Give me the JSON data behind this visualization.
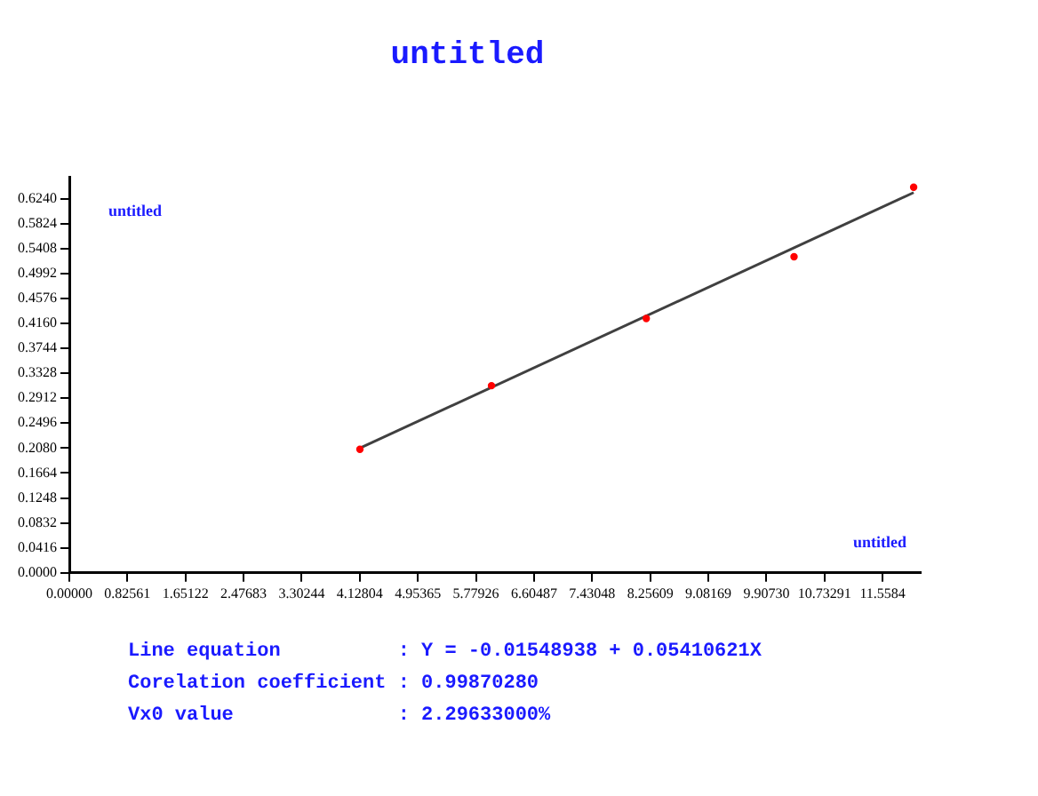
{
  "chart_data": {
    "type": "scatter",
    "title": "untitled",
    "series": [
      {
        "color": "#ff0000",
        "marker": "circle",
        "x": [
          4.13,
          6.0,
          8.2,
          10.3,
          12.0
        ],
        "values": [
          0.206,
          0.312,
          0.424,
          0.527,
          0.643
        ]
      },
      {
        "type": "line",
        "marker": "none",
        "color": "#404040",
        "x": [
          4.13,
          12.0
        ],
        "values": [
          0.208,
          0.634
        ]
      }
    ],
    "xlim": [
      0,
      12.1
    ],
    "ylim": [
      0,
      0.66
    ],
    "xticks": [
      {
        "value": 0,
        "label": "0.00000"
      },
      {
        "value": 0.82561,
        "label": "0.82561"
      },
      {
        "value": 1.65122,
        "label": "1.65122"
      },
      {
        "value": 2.47683,
        "label": "2.47683"
      },
      {
        "value": 3.30244,
        "label": "3.30244"
      },
      {
        "value": 4.12804,
        "label": "4.12804"
      },
      {
        "value": 4.95365,
        "label": "4.95365"
      },
      {
        "value": 5.77926,
        "label": "5.77926"
      },
      {
        "value": 6.60487,
        "label": "6.60487"
      },
      {
        "value": 7.43048,
        "label": "7.43048"
      },
      {
        "value": 8.25609,
        "label": "8.25609"
      },
      {
        "value": 9.08169,
        "label": "9.08169"
      },
      {
        "value": 9.9073,
        "label": "9.90730"
      },
      {
        "value": 10.73291,
        "label": "10.73291"
      },
      {
        "value": 11.5584,
        "label": "11.5584"
      }
    ],
    "yticks": [
      {
        "value": 0,
        "label": "0.0000"
      },
      {
        "value": 0.0416,
        "label": "0.0416"
      },
      {
        "value": 0.0832,
        "label": "0.0832"
      },
      {
        "value": 0.1248,
        "label": "0.1248"
      },
      {
        "value": 0.1664,
        "label": "0.1664"
      },
      {
        "value": 0.208,
        "label": "0.2080"
      },
      {
        "value": 0.2496,
        "label": "0.2496"
      },
      {
        "value": 0.2912,
        "label": "0.2912"
      },
      {
        "value": 0.3328,
        "label": "0.3328"
      },
      {
        "value": 0.3744,
        "label": "0.3744"
      },
      {
        "value": 0.416,
        "label": "0.4160"
      },
      {
        "value": 0.4576,
        "label": "0.4576"
      },
      {
        "value": 0.4992,
        "label": "0.4992"
      },
      {
        "value": 0.5408,
        "label": "0.5408"
      },
      {
        "value": 0.5824,
        "label": "0.5824"
      },
      {
        "value": 0.624,
        "label": "0.6240"
      }
    ],
    "grid": false,
    "legend": false,
    "line_style": "solid",
    "annotations": [
      "untitled",
      "untitled",
      "Line equation          : Y = -0.01548938 + 0.05410621X",
      "Corelation coefficient : 0.99870280",
      "Vx0 value              : 2.29633000%"
    ]
  }
}
